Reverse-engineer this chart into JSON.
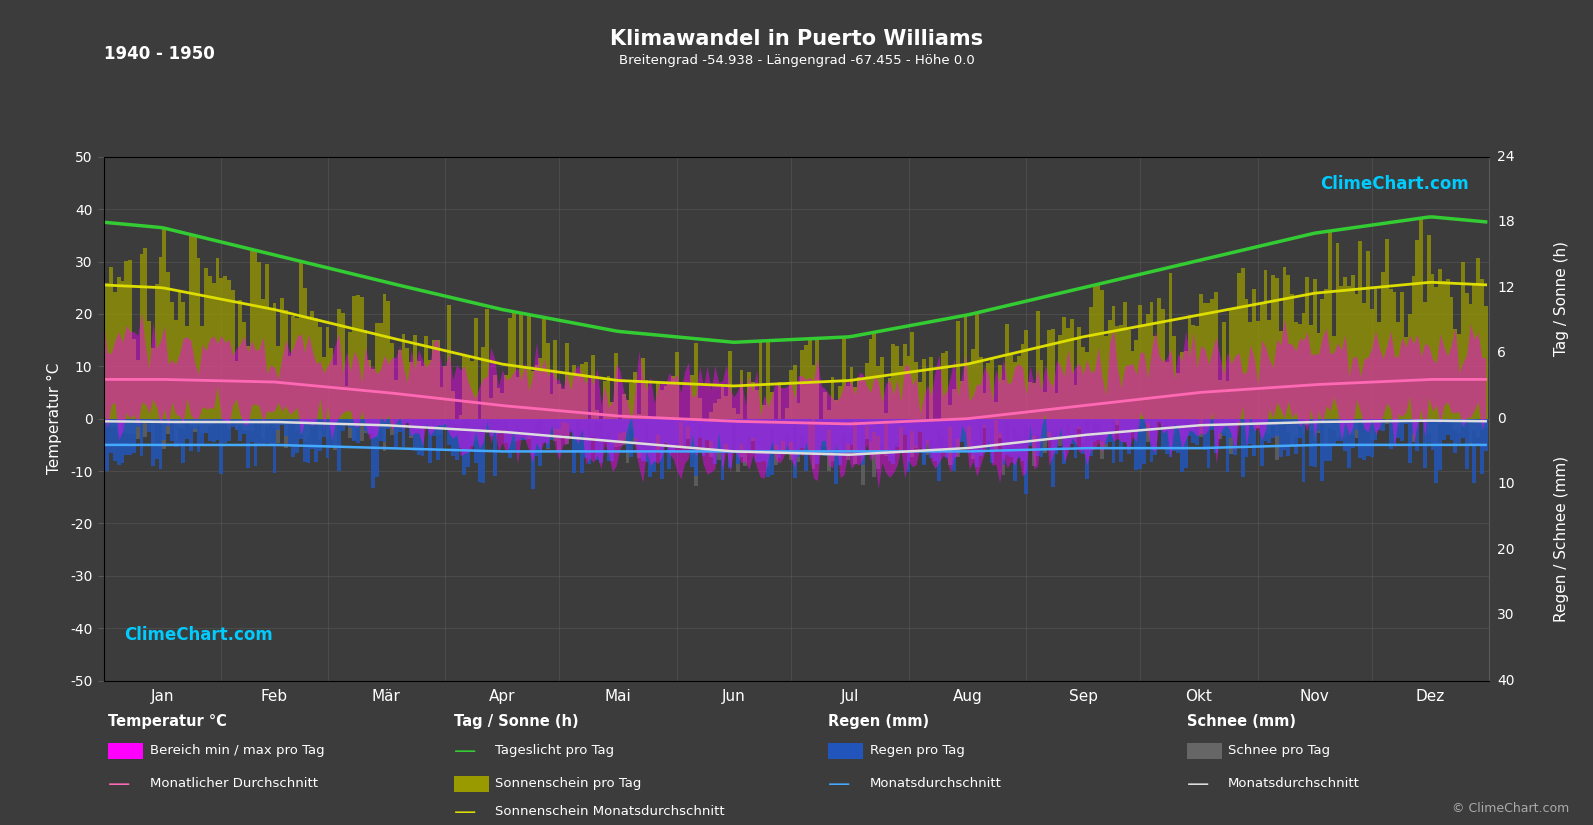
{
  "title": "Klimawandel in Puerto Williams",
  "subtitle": "Breitengrad -54.938 - Längengrad -67.455 - Höhe 0.0",
  "year_range": "1940 - 1950",
  "background_color": "#3c3c3c",
  "grid_color": "#585858",
  "text_color": "#ffffff",
  "months": [
    "Jan",
    "Feb",
    "Mär",
    "Apr",
    "Mai",
    "Jun",
    "Jul",
    "Aug",
    "Sep",
    "Okt",
    "Nov",
    "Dez"
  ],
  "temp_avg": [
    7.5,
    7.0,
    5.0,
    2.5,
    0.5,
    -0.5,
    -1.0,
    0.0,
    2.5,
    5.0,
    6.5,
    7.5
  ],
  "temp_min_avg": [
    1.0,
    1.0,
    -1.0,
    -4.0,
    -6.5,
    -8.0,
    -8.5,
    -7.5,
    -5.5,
    -2.5,
    -0.5,
    0.5
  ],
  "temp_max_avg": [
    14.5,
    13.5,
    11.0,
    8.5,
    7.0,
    6.5,
    6.5,
    7.5,
    10.0,
    12.5,
    13.5,
    14.5
  ],
  "daylight_avg": [
    17.5,
    15.0,
    12.5,
    10.0,
    8.0,
    7.0,
    7.5,
    9.5,
    12.0,
    14.5,
    17.0,
    18.5
  ],
  "sunshine_avg": [
    12.0,
    10.0,
    7.5,
    5.0,
    3.5,
    3.0,
    3.5,
    5.0,
    7.5,
    9.5,
    11.5,
    12.5
  ],
  "rain_mm_avg": [
    4.0,
    4.0,
    4.5,
    5.0,
    5.0,
    5.0,
    5.0,
    5.0,
    4.5,
    4.5,
    4.0,
    4.0
  ],
  "snow_mm_avg": [
    0.5,
    0.5,
    1.0,
    2.0,
    3.5,
    5.0,
    5.5,
    4.5,
    2.5,
    1.0,
    0.5,
    0.3
  ],
  "rain_daily_max": 15.0,
  "snow_daily_max": 12.0,
  "sun_scale_max": 24,
  "rain_scale_max": 40,
  "left_yticks": [
    -50,
    -40,
    -30,
    -20,
    -10,
    0,
    10,
    20,
    30,
    40,
    50
  ],
  "right_sun_ticks": [
    0,
    6,
    12,
    18,
    24
  ],
  "right_rain_ticks": [
    0,
    10,
    20,
    30,
    40
  ],
  "colors": {
    "temp_fill": "#ff00ff",
    "temp_line": "#ff69b4",
    "daylight_line": "#33cc33",
    "sunshine_fill": "#999900",
    "sunshine_line": "#dddd00",
    "rain_fill": "#2255bb",
    "rain_line": "#44aaff",
    "snow_fill": "#666666",
    "snow_line": "#dddddd"
  },
  "logo_color": "#00ccff",
  "copyright_color": "#aaaaaa",
  "legend": {
    "temp_section": "Temperatur °C",
    "temp_fill_label": "Bereich min / max pro Tag",
    "temp_line_label": "Monatlicher Durchschnitt",
    "sun_section": "Tag / Sonne (h)",
    "daylight_label": "Tageslicht pro Tag",
    "sunshine_fill_label": "Sonnenschein pro Tag",
    "sunshine_line_label": "Sonnenschein Monatsdurchschnitt",
    "rain_section": "Regen (mm)",
    "rain_fill_label": "Regen pro Tag",
    "rain_line_label": "Monatsdurchschnitt",
    "snow_section": "Schnee (mm)",
    "snow_fill_label": "Schnee pro Tag",
    "snow_line_label": "Monatsdurchschnitt"
  }
}
